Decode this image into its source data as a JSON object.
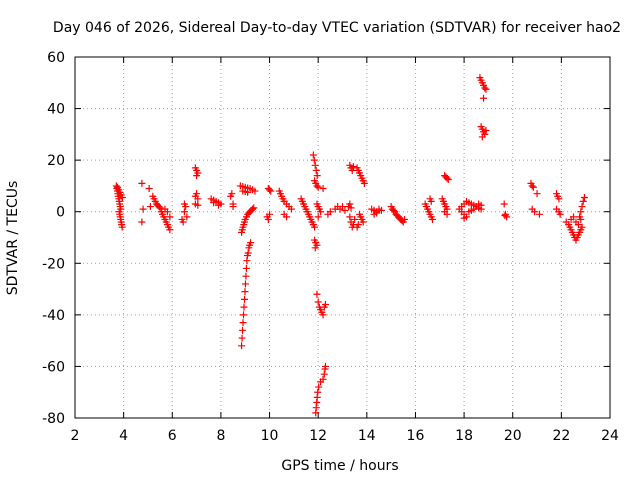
{
  "chart_data": {
    "type": "scatter",
    "title": "Day 046 of 2026, Sidereal Day-to-day VTEC variation (SDTVAR) for receiver hao2",
    "xlabel": "GPS time / hours",
    "ylabel": "SDTVAR / TECUs",
    "xlim": [
      2,
      24
    ],
    "ylim": [
      -80,
      60
    ],
    "xticks": [
      "2",
      "4",
      "6",
      "8",
      "10",
      "12",
      "14",
      "16",
      "18",
      "20",
      "22",
      "24"
    ],
    "yticks": [
      "-80",
      "-60",
      "-40",
      "-20",
      "0",
      "20",
      "40",
      "60"
    ],
    "grid": true,
    "marker": "+",
    "color": "#ff0000",
    "series": [
      {
        "name": "SDTVAR",
        "points": [
          [
            3.7,
            10
          ],
          [
            3.72,
            9
          ],
          [
            3.74,
            8
          ],
          [
            3.76,
            7
          ],
          [
            3.78,
            6
          ],
          [
            3.8,
            5
          ],
          [
            3.82,
            4
          ],
          [
            3.84,
            3
          ],
          [
            3.86,
            2
          ],
          [
            3.88,
            1
          ],
          [
            3.75,
            9.5
          ],
          [
            3.8,
            8.5
          ],
          [
            3.85,
            7.5
          ],
          [
            3.9,
            6.5
          ],
          [
            3.95,
            5.5
          ],
          [
            3.82,
            0
          ],
          [
            3.84,
            -1
          ],
          [
            3.86,
            -2
          ],
          [
            3.88,
            -3
          ],
          [
            3.9,
            -4
          ],
          [
            3.92,
            -5
          ],
          [
            3.94,
            -6
          ],
          [
            4.75,
            11
          ],
          [
            4.8,
            1
          ],
          [
            4.75,
            -4
          ],
          [
            5.05,
            9
          ],
          [
            5.1,
            2
          ],
          [
            5.2,
            6
          ],
          [
            5.25,
            5
          ],
          [
            5.3,
            4
          ],
          [
            5.35,
            3
          ],
          [
            5.4,
            2.5
          ],
          [
            5.45,
            2
          ],
          [
            5.5,
            1.5
          ],
          [
            5.55,
            0
          ],
          [
            5.6,
            -1
          ],
          [
            5.65,
            -2
          ],
          [
            5.7,
            -3
          ],
          [
            5.75,
            -4
          ],
          [
            5.8,
            -5
          ],
          [
            5.85,
            -6
          ],
          [
            5.9,
            -7
          ],
          [
            5.7,
            1
          ],
          [
            5.8,
            0
          ],
          [
            5.9,
            -2
          ],
          [
            6.4,
            -3
          ],
          [
            6.45,
            -4
          ],
          [
            6.5,
            0
          ],
          [
            6.55,
            2
          ],
          [
            6.5,
            3
          ],
          [
            6.6,
            -2
          ],
          [
            6.95,
            17
          ],
          [
            7.0,
            16
          ],
          [
            7.05,
            15
          ],
          [
            7.0,
            14
          ],
          [
            6.95,
            6
          ],
          [
            7.0,
            7
          ],
          [
            7.05,
            5
          ],
          [
            6.95,
            3
          ],
          [
            7.05,
            2.5
          ],
          [
            7.6,
            5
          ],
          [
            7.7,
            4.5
          ],
          [
            7.8,
            4
          ],
          [
            7.9,
            3.5
          ],
          [
            8.0,
            3
          ],
          [
            7.7,
            3.5
          ],
          [
            7.9,
            2.5
          ],
          [
            8.4,
            6
          ],
          [
            8.45,
            7
          ],
          [
            8.5,
            3
          ],
          [
            8.5,
            2
          ],
          [
            8.8,
            10
          ],
          [
            8.9,
            9.8
          ],
          [
            9.0,
            9.5
          ],
          [
            9.1,
            9.2
          ],
          [
            9.2,
            9
          ],
          [
            9.3,
            8.5
          ],
          [
            9.4,
            8
          ],
          [
            8.9,
            8
          ],
          [
            9.0,
            7.8
          ],
          [
            9.1,
            7.5
          ],
          [
            8.85,
            -52
          ],
          [
            8.87,
            -49
          ],
          [
            8.89,
            -46
          ],
          [
            8.91,
            -43
          ],
          [
            8.93,
            -40
          ],
          [
            8.95,
            -37
          ],
          [
            8.97,
            -34
          ],
          [
            8.99,
            -31
          ],
          [
            9.01,
            -28
          ],
          [
            9.03,
            -25
          ],
          [
            9.05,
            -22
          ],
          [
            9.07,
            -19
          ],
          [
            9.09,
            -17
          ],
          [
            9.12,
            -16
          ],
          [
            9.15,
            -14
          ],
          [
            9.18,
            -13
          ],
          [
            9.22,
            -12
          ],
          [
            8.85,
            -8
          ],
          [
            8.88,
            -7
          ],
          [
            8.91,
            -6
          ],
          [
            8.94,
            -5
          ],
          [
            8.97,
            -4
          ],
          [
            9.0,
            -3
          ],
          [
            9.05,
            -2
          ],
          [
            9.1,
            -1
          ],
          [
            9.15,
            -0.5
          ],
          [
            9.2,
            0
          ],
          [
            9.25,
            0.5
          ],
          [
            9.3,
            1
          ],
          [
            9.35,
            1.5
          ],
          [
            9.95,
            9
          ],
          [
            10.0,
            8.5
          ],
          [
            10.05,
            8
          ],
          [
            9.9,
            -2
          ],
          [
            9.95,
            -3
          ],
          [
            10.0,
            -1
          ],
          [
            10.4,
            8
          ],
          [
            10.45,
            7
          ],
          [
            10.5,
            6
          ],
          [
            10.55,
            5
          ],
          [
            10.6,
            4
          ],
          [
            10.7,
            3
          ],
          [
            10.8,
            2
          ],
          [
            10.9,
            1
          ],
          [
            10.6,
            -1
          ],
          [
            10.7,
            -2
          ],
          [
            11.3,
            5
          ],
          [
            11.35,
            4
          ],
          [
            11.4,
            3
          ],
          [
            11.45,
            2
          ],
          [
            11.5,
            1
          ],
          [
            11.55,
            0
          ],
          [
            11.6,
            -1
          ],
          [
            11.65,
            -2
          ],
          [
            11.7,
            -3
          ],
          [
            11.75,
            -4
          ],
          [
            11.8,
            -5
          ],
          [
            11.85,
            -6
          ],
          [
            11.8,
            22
          ],
          [
            11.84,
            20
          ],
          [
            11.88,
            18
          ],
          [
            11.92,
            16
          ],
          [
            11.96,
            14
          ],
          [
            11.85,
            12
          ],
          [
            11.9,
            11
          ],
          [
            11.95,
            10
          ],
          [
            12.0,
            9.5
          ],
          [
            12.2,
            9
          ],
          [
            11.95,
            3
          ],
          [
            12.0,
            2
          ],
          [
            12.05,
            1
          ],
          [
            12.1,
            0
          ],
          [
            12.0,
            -2
          ],
          [
            11.85,
            -11
          ],
          [
            11.9,
            -12
          ],
          [
            11.95,
            -13
          ],
          [
            11.88,
            -14
          ],
          [
            11.95,
            -32
          ],
          [
            12.0,
            -35
          ],
          [
            12.05,
            -37
          ],
          [
            12.1,
            -38
          ],
          [
            12.15,
            -39
          ],
          [
            12.2,
            -40
          ],
          [
            12.25,
            -37
          ],
          [
            12.3,
            -36
          ],
          [
            11.9,
            -78
          ],
          [
            11.92,
            -76
          ],
          [
            11.94,
            -74
          ],
          [
            11.96,
            -72
          ],
          [
            11.98,
            -70
          ],
          [
            12.02,
            -68
          ],
          [
            12.1,
            -66
          ],
          [
            12.2,
            -65
          ],
          [
            12.25,
            -63
          ],
          [
            12.28,
            -61
          ],
          [
            12.3,
            -60
          ],
          [
            12.4,
            -1
          ],
          [
            12.5,
            0
          ],
          [
            12.7,
            1
          ],
          [
            12.8,
            2
          ],
          [
            12.9,
            1
          ],
          [
            13.0,
            2
          ],
          [
            13.1,
            0.5
          ],
          [
            13.25,
            2
          ],
          [
            13.3,
            3
          ],
          [
            13.35,
            1.5
          ],
          [
            13.3,
            -2
          ],
          [
            13.35,
            -4
          ],
          [
            13.4,
            -6
          ],
          [
            13.45,
            -5
          ],
          [
            13.5,
            -3
          ],
          [
            13.3,
            18
          ],
          [
            13.35,
            17
          ],
          [
            13.4,
            16
          ],
          [
            13.45,
            17.5
          ],
          [
            13.6,
            17
          ],
          [
            13.65,
            16
          ],
          [
            13.7,
            15
          ],
          [
            13.75,
            14
          ],
          [
            13.8,
            13
          ],
          [
            13.85,
            12
          ],
          [
            13.9,
            11
          ],
          [
            13.7,
            -1
          ],
          [
            13.75,
            -2
          ],
          [
            13.8,
            -3
          ],
          [
            13.85,
            -4
          ],
          [
            13.65,
            -5
          ],
          [
            13.6,
            -6
          ],
          [
            14.2,
            1
          ],
          [
            14.3,
            0.5
          ],
          [
            14.4,
            0
          ],
          [
            14.5,
            1
          ],
          [
            14.6,
            0.5
          ],
          [
            14.3,
            -1
          ],
          [
            14.4,
            -0.5
          ],
          [
            15.0,
            2
          ],
          [
            15.05,
            1
          ],
          [
            15.1,
            0.5
          ],
          [
            15.15,
            0
          ],
          [
            15.2,
            -1
          ],
          [
            15.25,
            -1.5
          ],
          [
            15.3,
            -2
          ],
          [
            15.35,
            -2.5
          ],
          [
            15.4,
            -3
          ],
          [
            15.45,
            -3.5
          ],
          [
            15.5,
            -4
          ],
          [
            15.55,
            -3
          ],
          [
            16.4,
            3
          ],
          [
            16.45,
            2
          ],
          [
            16.5,
            1
          ],
          [
            16.55,
            0
          ],
          [
            16.6,
            -1
          ],
          [
            16.65,
            -2
          ],
          [
            16.7,
            -3
          ],
          [
            16.6,
            5
          ],
          [
            16.65,
            4
          ],
          [
            17.1,
            5
          ],
          [
            17.15,
            4
          ],
          [
            17.2,
            3
          ],
          [
            17.25,
            2
          ],
          [
            17.3,
            1
          ],
          [
            17.2,
            0
          ],
          [
            17.3,
            -1
          ],
          [
            17.2,
            14
          ],
          [
            17.25,
            13.5
          ],
          [
            17.3,
            13
          ],
          [
            17.35,
            12.5
          ],
          [
            17.8,
            1
          ],
          [
            17.9,
            2
          ],
          [
            18.0,
            3
          ],
          [
            18.1,
            4
          ],
          [
            18.2,
            3.5
          ],
          [
            18.3,
            3
          ],
          [
            18.4,
            2.5
          ],
          [
            18.5,
            2
          ],
          [
            18.6,
            1.5
          ],
          [
            18.7,
            1
          ],
          [
            17.9,
            0
          ],
          [
            18.0,
            -1
          ],
          [
            18.1,
            -2
          ],
          [
            18.2,
            0
          ],
          [
            18.3,
            0.5
          ],
          [
            18.0,
            -2.5
          ],
          [
            18.4,
            1
          ],
          [
            18.6,
            3
          ],
          [
            18.7,
            2.5
          ],
          [
            18.65,
            52
          ],
          [
            18.7,
            51
          ],
          [
            18.75,
            50
          ],
          [
            18.8,
            49
          ],
          [
            18.85,
            48
          ],
          [
            18.9,
            47.5
          ],
          [
            18.8,
            44
          ],
          [
            18.7,
            33
          ],
          [
            18.75,
            32
          ],
          [
            18.8,
            31
          ],
          [
            18.85,
            30
          ],
          [
            18.9,
            31.5
          ],
          [
            18.75,
            29
          ],
          [
            19.65,
            3
          ],
          [
            19.7,
            -1
          ],
          [
            19.75,
            -2
          ],
          [
            19.68,
            -1.5
          ],
          [
            20.75,
            11
          ],
          [
            20.8,
            10
          ],
          [
            20.85,
            9.5
          ],
          [
            20.8,
            1
          ],
          [
            20.9,
            0
          ],
          [
            21.0,
            7
          ],
          [
            21.1,
            -1
          ],
          [
            21.8,
            7
          ],
          [
            21.85,
            6
          ],
          [
            21.9,
            5
          ],
          [
            21.8,
            1
          ],
          [
            21.9,
            0
          ],
          [
            21.95,
            -1
          ],
          [
            22.2,
            -4
          ],
          [
            22.3,
            -5
          ],
          [
            22.35,
            -6
          ],
          [
            22.4,
            -7
          ],
          [
            22.45,
            -8
          ],
          [
            22.5,
            -9
          ],
          [
            22.55,
            -10
          ],
          [
            22.6,
            -11
          ],
          [
            22.65,
            -10
          ],
          [
            22.7,
            -9
          ],
          [
            22.75,
            -8
          ],
          [
            22.8,
            -7
          ],
          [
            22.85,
            -6
          ],
          [
            22.4,
            -3
          ],
          [
            22.5,
            -2
          ],
          [
            22.6,
            -4
          ],
          [
            22.7,
            -5
          ],
          [
            22.8,
            -3
          ],
          [
            22.75,
            -2
          ],
          [
            22.8,
            0
          ],
          [
            22.85,
            2
          ],
          [
            22.9,
            4
          ],
          [
            22.95,
            5.5
          ]
        ]
      }
    ]
  }
}
